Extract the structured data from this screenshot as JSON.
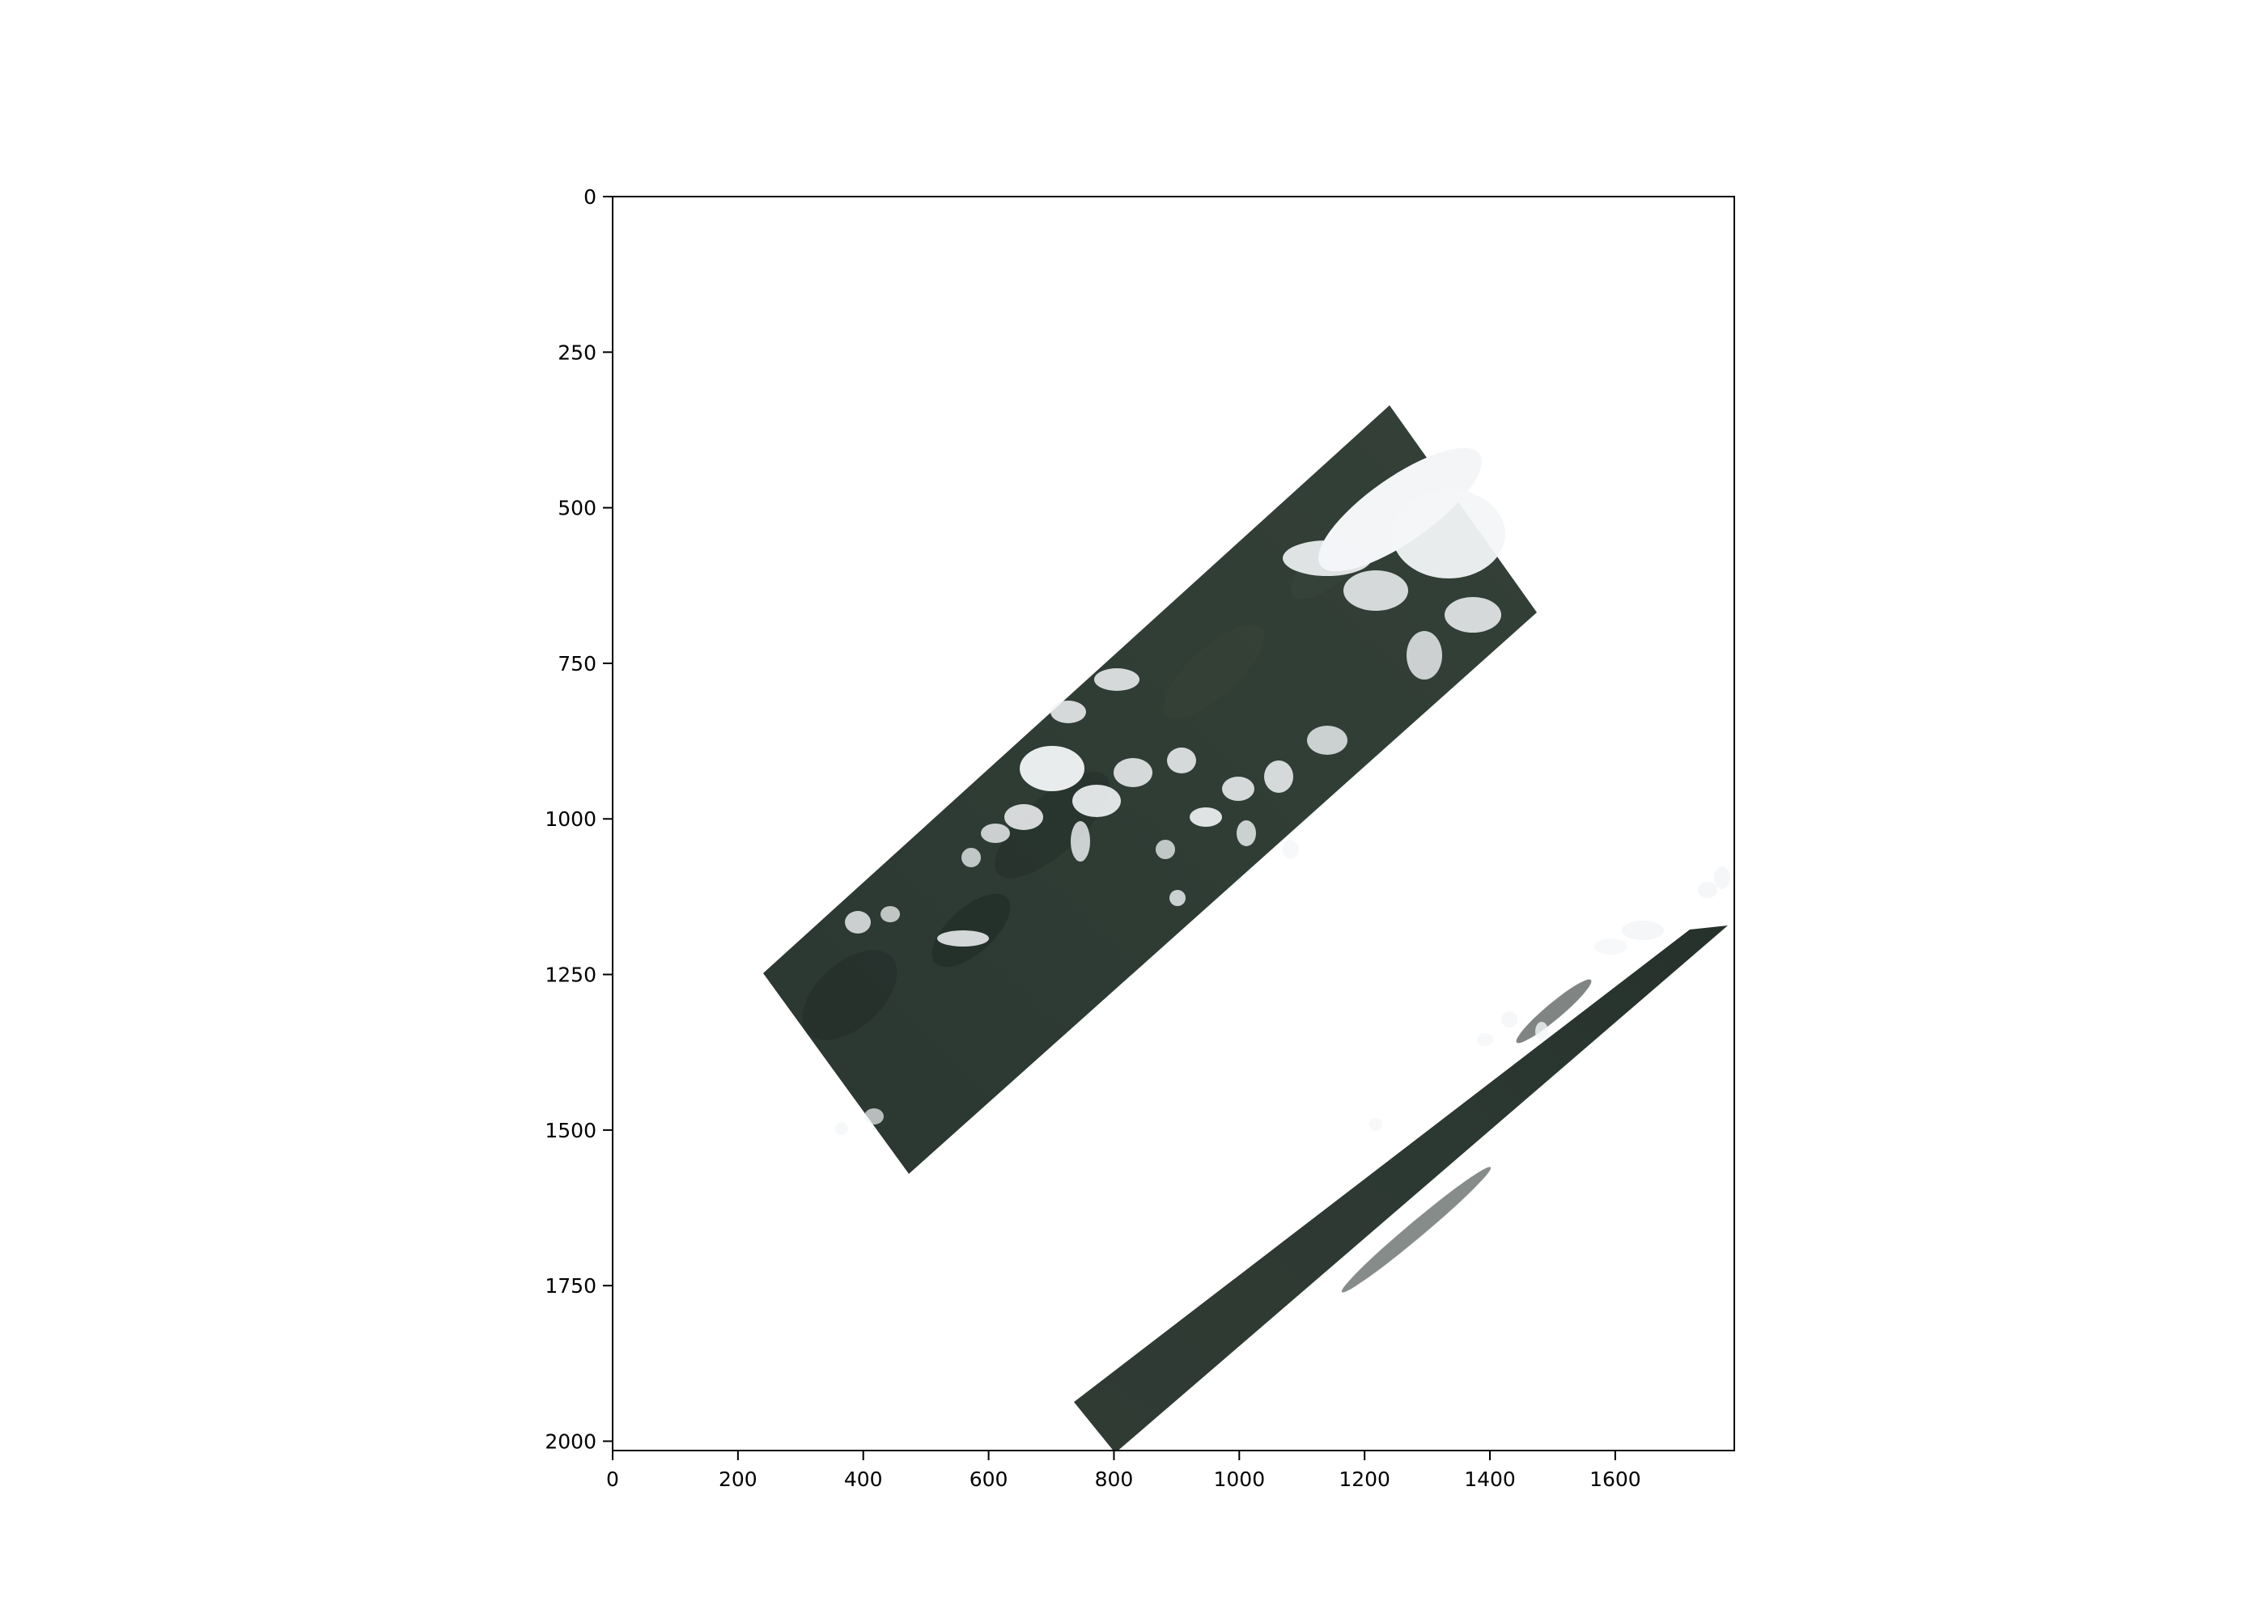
{
  "image": {
    "description_type": "satellite true-color mosaic plotted on pixel axes",
    "y_axis_inverted": true,
    "xlim": [
      0,
      1790
    ],
    "ylim": [
      2015,
      0
    ],
    "x_ticks": [
      0,
      200,
      400,
      600,
      800,
      1000,
      1200,
      1400,
      1600
    ],
    "y_ticks": [
      0,
      250,
      500,
      750,
      1000,
      1250,
      1500,
      1750,
      2000
    ],
    "x_tick_labels": [
      "0",
      "200",
      "400",
      "600",
      "800",
      "1000",
      "1200",
      "1400",
      "1600"
    ],
    "y_tick_labels": [
      "0",
      "250",
      "500",
      "750",
      "1000",
      "1250",
      "1500",
      "1750",
      "2000"
    ],
    "colors": {
      "land": "#2c3a34",
      "land_dark": "#1f2a26",
      "land_light": "#3d4a40",
      "cloud": "#f3f5f7",
      "background": "#ffffff"
    }
  }
}
